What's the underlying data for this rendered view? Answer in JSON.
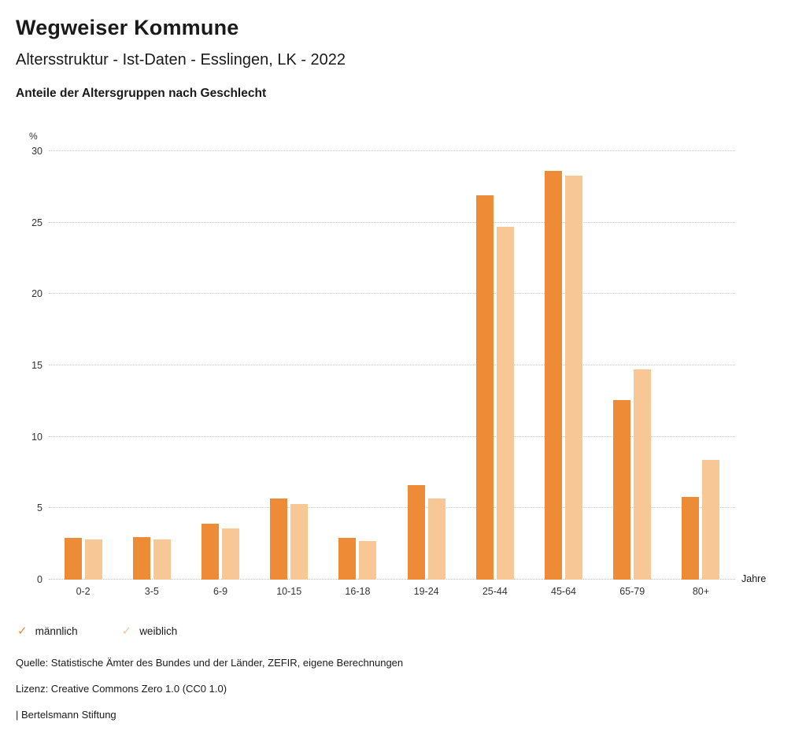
{
  "header": {
    "title": "Wegweiser Kommune",
    "subtitle": "Altersstruktur - Ist-Daten - Esslingen, LK - 2022",
    "chart_heading": "Anteile der Altersgruppen nach Geschlecht"
  },
  "chart_data": {
    "type": "bar",
    "title": "Anteile der Altersgruppen nach Geschlecht",
    "unit_label": "%",
    "x_axis_label": "Jahre",
    "categories": [
      "0-2",
      "3-5",
      "6-9",
      "10-15",
      "16-18",
      "19-24",
      "25-44",
      "45-64",
      "65-79",
      "80+"
    ],
    "series": [
      {
        "name": "männlich",
        "color": "#ed8b36",
        "values": [
          2.9,
          3.0,
          3.9,
          5.7,
          2.9,
          6.6,
          26.9,
          28.6,
          12.6,
          5.8
        ]
      },
      {
        "name": "weiblich",
        "color": "#f7c795",
        "values": [
          2.8,
          2.8,
          3.6,
          5.3,
          2.7,
          5.7,
          24.7,
          28.3,
          14.7,
          8.4
        ]
      }
    ],
    "ylim": [
      0,
      30
    ],
    "yticks": [
      0,
      5,
      10,
      15,
      20,
      25,
      30
    ],
    "grid": "dotted-horizontal",
    "legend_position": "bottom-left"
  },
  "legend": {
    "check_icon": "✓",
    "items": [
      {
        "label": "männlich",
        "color": "#ed8b36"
      },
      {
        "label": "weiblich",
        "color": "#f7c795"
      }
    ]
  },
  "footer": {
    "source": "Quelle: Statistische Ämter des Bundes und der Länder, ZEFIR, eigene Berechnungen",
    "license": "Lizenz: Creative Commons Zero 1.0 (CC0 1.0)",
    "brand": "| Bertelsmann Stiftung"
  }
}
